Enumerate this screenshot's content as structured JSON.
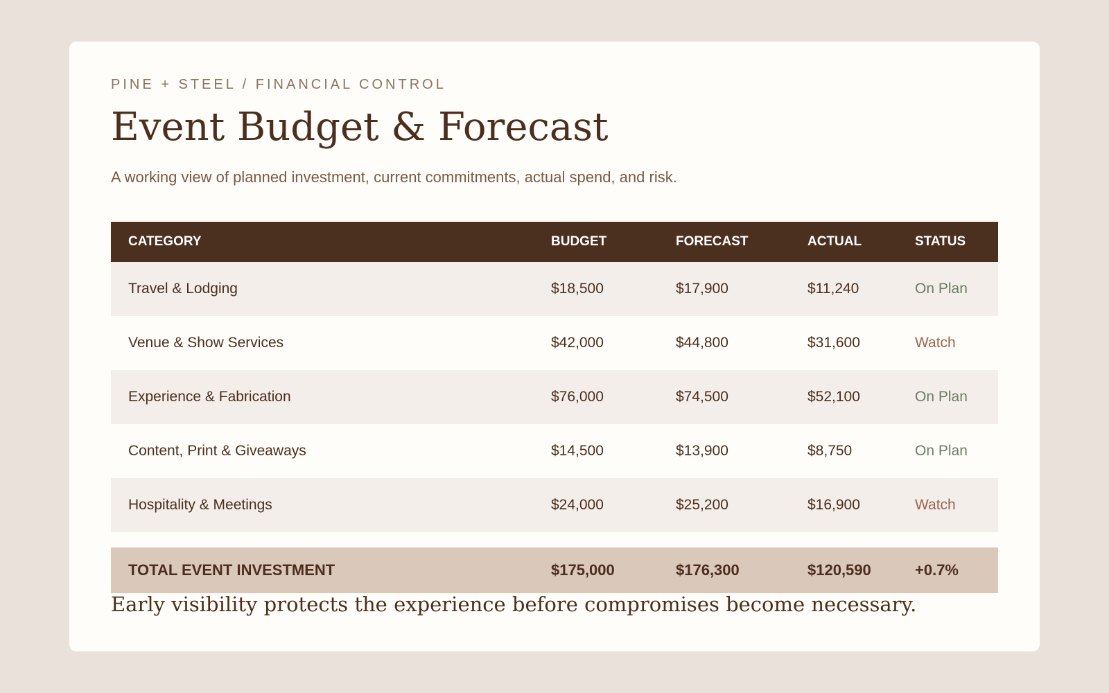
{
  "header": {
    "eyebrow": "PINE + STEEL / FINANCIAL CONTROL",
    "title": "Event Budget & Forecast",
    "subtitle": "A working view of planned investment, current commitments, actual spend, and risk."
  },
  "table": {
    "columns": [
      "CATEGORY",
      "BUDGET",
      "FORECAST",
      "ACTUAL",
      "STATUS"
    ],
    "rows": [
      {
        "category": "Travel & Lodging",
        "budget": "$18,500",
        "forecast": "$17,900",
        "actual": "$11,240",
        "status": "On Plan"
      },
      {
        "category": "Venue & Show Services",
        "budget": "$42,000",
        "forecast": "$44,800",
        "actual": "$31,600",
        "status": "Watch"
      },
      {
        "category": "Experience & Fabrication",
        "budget": "$76,000",
        "forecast": "$74,500",
        "actual": "$52,100",
        "status": "On Plan"
      },
      {
        "category": "Content, Print & Giveaways",
        "budget": "$14,500",
        "forecast": "$13,900",
        "actual": "$8,750",
        "status": "On Plan"
      },
      {
        "category": "Hospitality & Meetings",
        "budget": "$24,000",
        "forecast": "$25,200",
        "actual": "$16,900",
        "status": "Watch"
      }
    ],
    "total": {
      "label": "TOTAL EVENT INVESTMENT",
      "budget": "$175,000",
      "forecast": "$176,300",
      "actual": "$120,590",
      "variance": "+0.7%"
    }
  },
  "footnote": "Early visibility protects the experience before compromises become necessary.",
  "colors": {
    "status_on_plan": "#6b7d63",
    "status_watch": "#9a6450",
    "header_bg": "#4b2f1f",
    "total_bg": "#dac8ba"
  }
}
